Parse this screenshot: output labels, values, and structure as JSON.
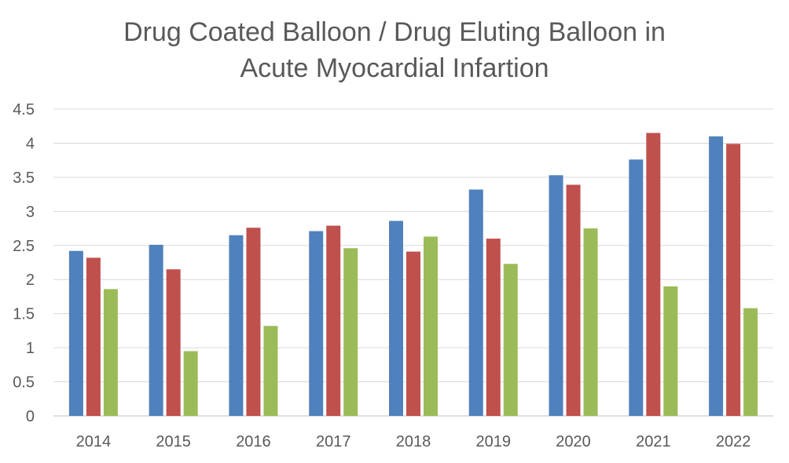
{
  "chart_data": {
    "type": "bar",
    "title_lines": [
      "Drug Coated Balloon / Drug Eluting Balloon in",
      "Acute Myocardial Infartion"
    ],
    "xlabel": "",
    "ylabel": "",
    "categories": [
      "2014",
      "2015",
      "2016",
      "2017",
      "2018",
      "2019",
      "2020",
      "2021",
      "2022"
    ],
    "ylim": [
      0,
      4.5
    ],
    "yticks": [
      "0",
      "0.5",
      "1",
      "1.5",
      "2",
      "2.5",
      "3",
      "3.5",
      "4",
      "4.5"
    ],
    "grid": true,
    "legend": "none",
    "series": [
      {
        "color": "#4F81BD",
        "values": [
          2.42,
          2.51,
          2.65,
          2.71,
          2.86,
          3.32,
          3.53,
          3.76,
          4.1
        ]
      },
      {
        "color": "#C0504D",
        "values": [
          2.32,
          2.15,
          2.76,
          2.79,
          2.41,
          2.6,
          3.39,
          4.15,
          3.99
        ]
      },
      {
        "color": "#9BBB59",
        "values": [
          1.86,
          0.95,
          1.32,
          2.46,
          2.63,
          2.23,
          2.75,
          1.9,
          1.58
        ]
      }
    ]
  }
}
